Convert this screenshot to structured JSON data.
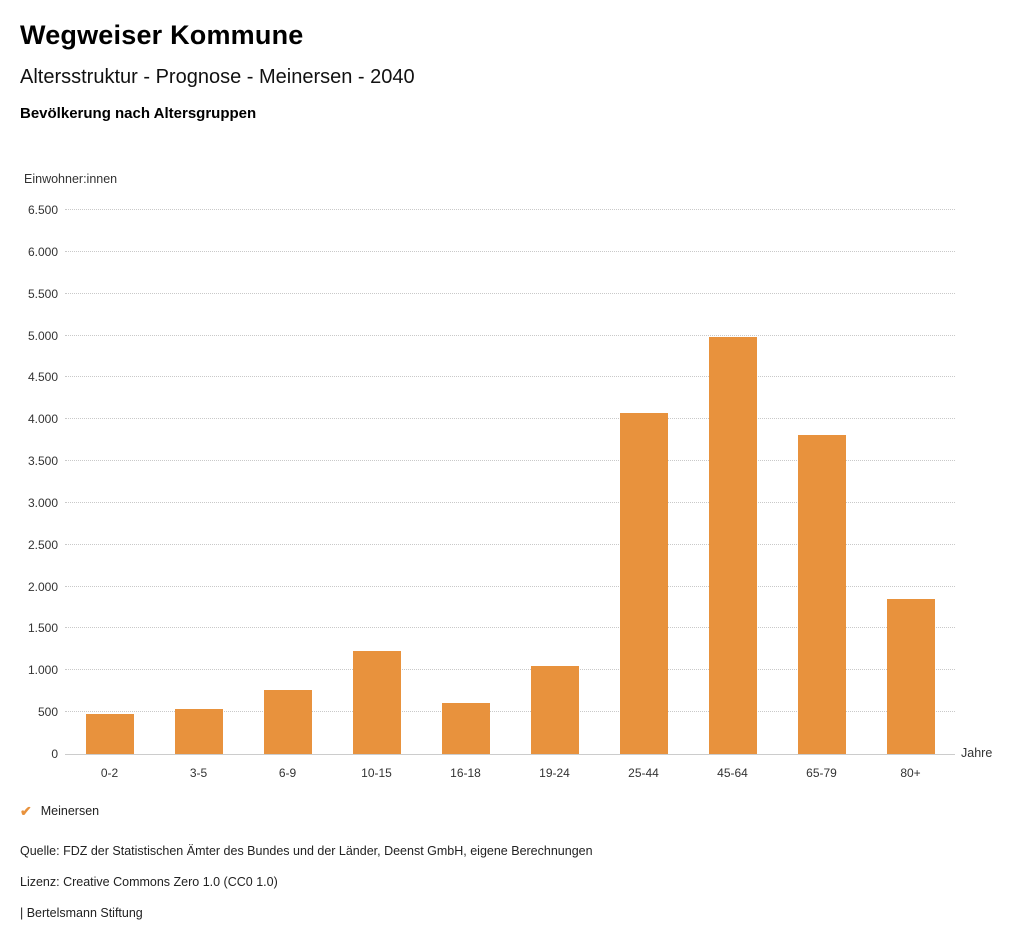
{
  "header": {
    "title": "Wegweiser Kommune",
    "subtitle": "Altersstruktur - Prognose - Meinersen - 2040",
    "chart_title": "Bevölkerung nach Altersgruppen"
  },
  "chart_data": {
    "type": "bar",
    "title": "Bevölkerung nach Altersgruppen",
    "xlabel": "Jahre",
    "ylabel": "Einwohner:innen",
    "categories": [
      "0-2",
      "3-5",
      "6-9",
      "10-15",
      "16-18",
      "19-24",
      "25-44",
      "45-64",
      "65-79",
      "80+"
    ],
    "values": [
      480,
      540,
      770,
      1230,
      610,
      1050,
      4070,
      4980,
      3810,
      1850
    ],
    "series_name": "Meinersen",
    "ylim": [
      0,
      6500
    ],
    "ytick_step": 500,
    "ytick_labels": [
      "0",
      "500",
      "1.000",
      "1.500",
      "2.000",
      "2.500",
      "3.000",
      "3.500",
      "4.000",
      "4.500",
      "5.000",
      "5.500",
      "6.000",
      "6.500"
    ],
    "bar_color": "#E8923D",
    "grid": true,
    "legend_position": "bottom-left"
  },
  "legend": {
    "items": [
      {
        "label": "Meinersen",
        "color": "#E8923D",
        "icon": "check-icon"
      }
    ]
  },
  "footer": {
    "source": "Quelle: FDZ der Statistischen Ämter des Bundes und der Länder, Deenst GmbH, eigene Berechnungen",
    "license": "Lizenz: Creative Commons Zero 1.0 (CC0 1.0)",
    "brand": "| Bertelsmann Stiftung"
  }
}
